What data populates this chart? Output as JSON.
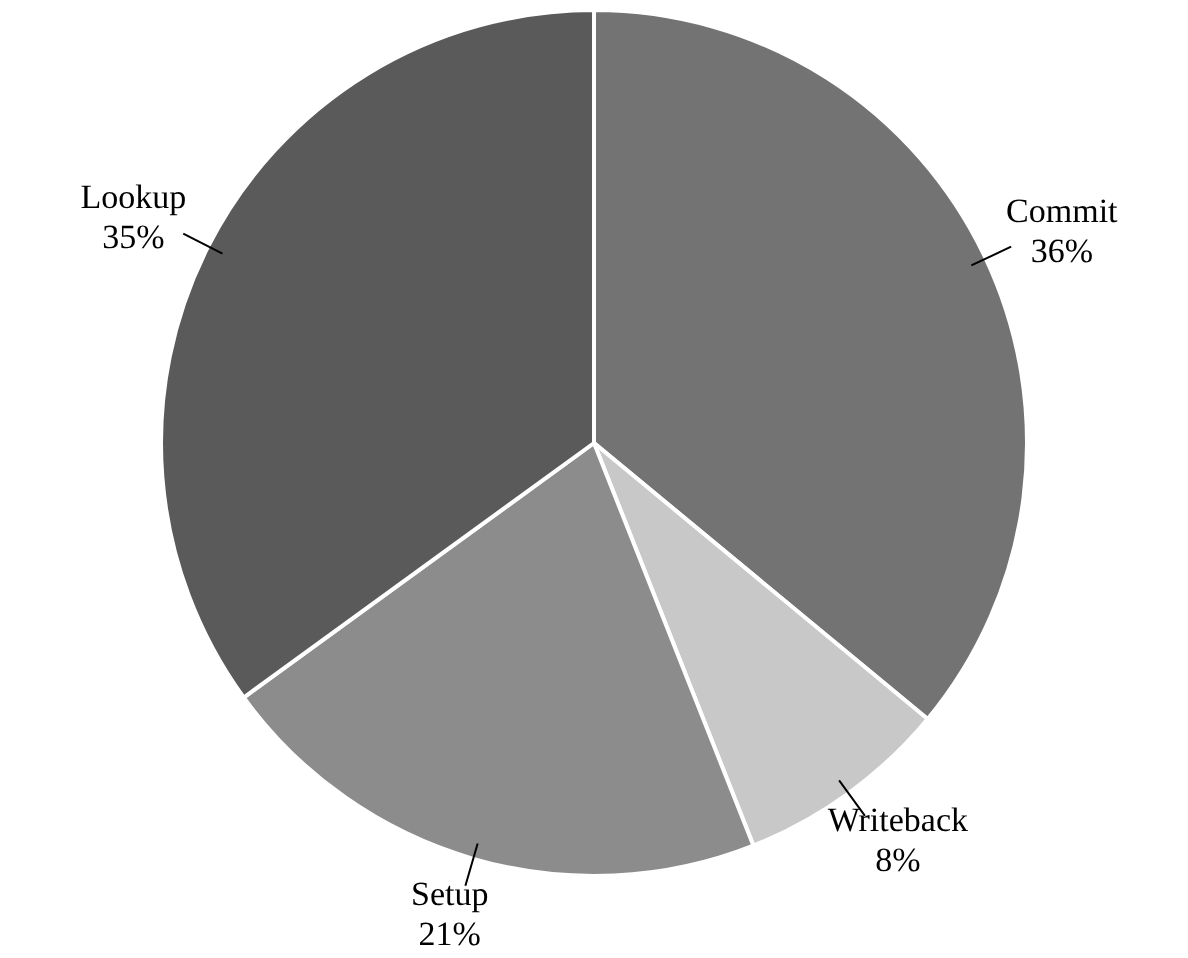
{
  "chart_data": {
    "type": "pie",
    "categories": [
      "Commit",
      "Writeback",
      "Setup",
      "Lookup"
    ],
    "values": [
      36,
      8,
      21,
      35
    ],
    "value_labels": [
      "36%",
      "8%",
      "21%",
      "35%"
    ],
    "colors": [
      "#737373",
      "#c8c8c8",
      "#8c8c8c",
      "#5a5a5a"
    ],
    "legend": false
  }
}
